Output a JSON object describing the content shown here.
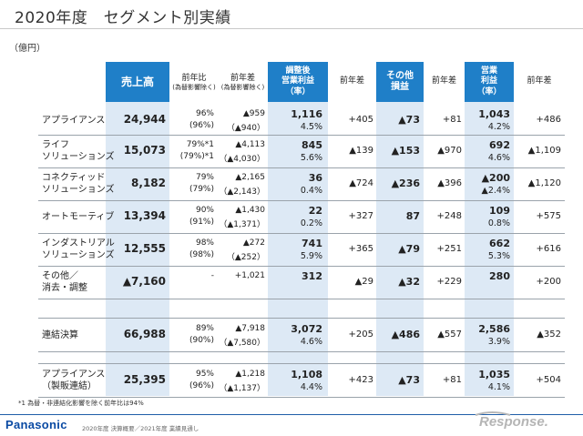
{
  "title": "2020年度　セグメント別実績",
  "unit": "（億円）",
  "headers": {
    "sales": "売上高",
    "yoy": "前年比",
    "yoy_note": "(為替影響除く)",
    "diff": "前年差",
    "diff_note": "(為替影響除く)",
    "adj_profit": "調整後\n営業利益\n（率）",
    "adj_diff": "前年差",
    "other": "その他\n損益",
    "other_diff": "前年差",
    "op_profit": "営業\n利益\n（率）",
    "op_diff": "前年差"
  },
  "rows": [
    {
      "seg": "アプライアンス",
      "sales": "24,944",
      "yoy": "96%",
      "yoy_ex": "(96%)",
      "diff": "▲959",
      "diff_ex": "（▲940）",
      "adj": "1,116",
      "adj_rate": "4.5%",
      "adj_diff": "+405",
      "other": "▲73",
      "other_diff": "+81",
      "op": "1,043",
      "op_rate": "4.2%",
      "op_diff": "+486"
    },
    {
      "seg": "ライフ\nソリューションズ",
      "sales": "15,073",
      "yoy": "79%*1",
      "yoy_ex": "(79%)*1",
      "diff": "▲4,113",
      "diff_ex": "（▲4,030）",
      "adj": "845",
      "adj_rate": "5.6%",
      "adj_diff": "▲139",
      "other": "▲153",
      "other_diff": "▲970",
      "op": "692",
      "op_rate": "4.6%",
      "op_diff": "▲1,109"
    },
    {
      "seg": "コネクティッド\nソリューションズ",
      "sales": "8,182",
      "yoy": "79%",
      "yoy_ex": "(79%)",
      "diff": "▲2,165",
      "diff_ex": "（▲2,143）",
      "adj": "36",
      "adj_rate": "0.4%",
      "adj_diff": "▲724",
      "other": "▲236",
      "other_diff": "▲396",
      "op": "▲200",
      "op_rate": "▲2.4%",
      "op_diff": "▲1,120"
    },
    {
      "seg": "オートモーティブ",
      "sales": "13,394",
      "yoy": "90%",
      "yoy_ex": "(91%)",
      "diff": "▲1,430",
      "diff_ex": "（▲1,371）",
      "adj": "22",
      "adj_rate": "0.2%",
      "adj_diff": "+327",
      "other": "87",
      "other_diff": "+248",
      "op": "109",
      "op_rate": "0.8%",
      "op_diff": "+575"
    },
    {
      "seg": "インダストリアル\nソリューションズ",
      "sales": "12,555",
      "yoy": "98%",
      "yoy_ex": "(98%)",
      "diff": "▲272",
      "diff_ex": "（▲252）",
      "adj": "741",
      "adj_rate": "5.9%",
      "adj_diff": "+365",
      "other": "▲79",
      "other_diff": "+251",
      "op": "662",
      "op_rate": "5.3%",
      "op_diff": "+616"
    },
    {
      "seg": "その他／\n消去・調整",
      "sales": "▲7,160",
      "yoy": "-",
      "yoy_ex": "",
      "diff": "+1,021",
      "diff_ex": "",
      "adj": "312",
      "adj_rate": "",
      "adj_diff": "▲29",
      "other": "▲32",
      "other_diff": "+229",
      "op": "280",
      "op_rate": "",
      "op_diff": "+200"
    }
  ],
  "consolidated": {
    "seg": "連結決算",
    "sales": "66,988",
    "yoy": "89%",
    "yoy_ex": "(90%)",
    "diff": "▲7,918",
    "diff_ex": "（▲7,580）",
    "adj": "3,072",
    "adj_rate": "4.6%",
    "adj_diff": "+205",
    "other": "▲486",
    "other_diff": "▲557",
    "op": "2,586",
    "op_rate": "3.9%",
    "op_diff": "▲352"
  },
  "appliance_mfg": {
    "seg": "アプライアンス\n（製販連結）",
    "sales": "25,395",
    "yoy": "95%",
    "yoy_ex": "(96%)",
    "diff": "▲1,218",
    "diff_ex": "（▲1,137）",
    "adj": "1,108",
    "adj_rate": "4.4%",
    "adj_diff": "+423",
    "other": "▲73",
    "other_diff": "+81",
    "op": "1,035",
    "op_rate": "4.1%",
    "op_diff": "+504"
  },
  "footnote": "*1 為替・非連結化影響を除く前年比は94%",
  "logo": "Panasonic",
  "doc_footer": "2020年度 決算概要／2021年度 業績見通し",
  "watermark": "Response."
}
